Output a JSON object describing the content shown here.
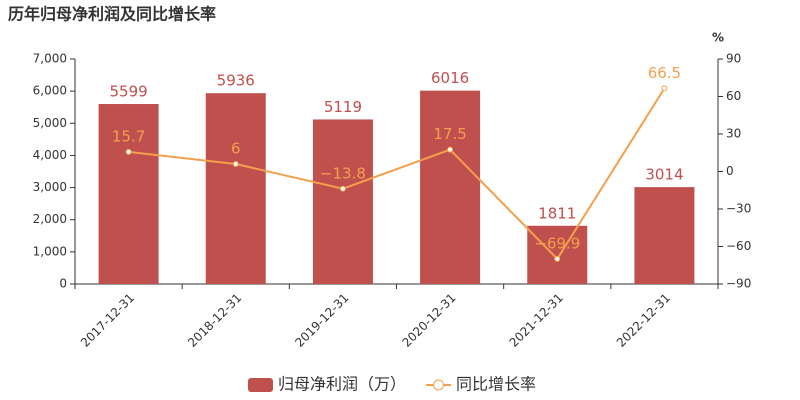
{
  "chart_data": {
    "type": "bar",
    "title": "历年归母净利润及同比增长率",
    "y2_unit": "%",
    "categories": [
      "2017-12-31",
      "2018-12-31",
      "2019-12-31",
      "2020-12-31",
      "2021-12-31",
      "2022-12-31"
    ],
    "series": [
      {
        "name": "归母净利润（万）",
        "type": "bar",
        "color": "#c0504d",
        "values": [
          5599,
          5936,
          5119,
          6016,
          1811,
          3014
        ]
      },
      {
        "name": "同比增长率",
        "type": "line",
        "axis": "y2",
        "color": "#f2a04c",
        "values": [
          15.7,
          6,
          -13.8,
          17.5,
          -69.9,
          66.5
        ],
        "value_labels": [
          "15.7",
          "6",
          "−13.8",
          "17.5",
          "−69.9",
          "66.5"
        ]
      }
    ],
    "ylim": [
      0,
      7000
    ],
    "yticks": [
      0,
      {
        "value": 1000,
        "label": "1,000"
      },
      {
        "value": 2000,
        "label": "2,000"
      },
      {
        "value": 3000,
        "label": "3,000"
      },
      {
        "value": 4000,
        "label": "4,000"
      },
      {
        "value": 5000,
        "label": "5,000"
      },
      {
        "value": 6000,
        "label": "6,000"
      },
      {
        "value": 7000,
        "label": "7,000"
      }
    ],
    "y2lim": [
      -90,
      90
    ],
    "y2ticks": [
      {
        "value": -90,
        "label": "−90"
      },
      {
        "value": -60,
        "label": "−60"
      },
      {
        "value": -30,
        "label": "−30"
      },
      0,
      30,
      60,
      90
    ],
    "grid": false,
    "legend": "bottom"
  }
}
